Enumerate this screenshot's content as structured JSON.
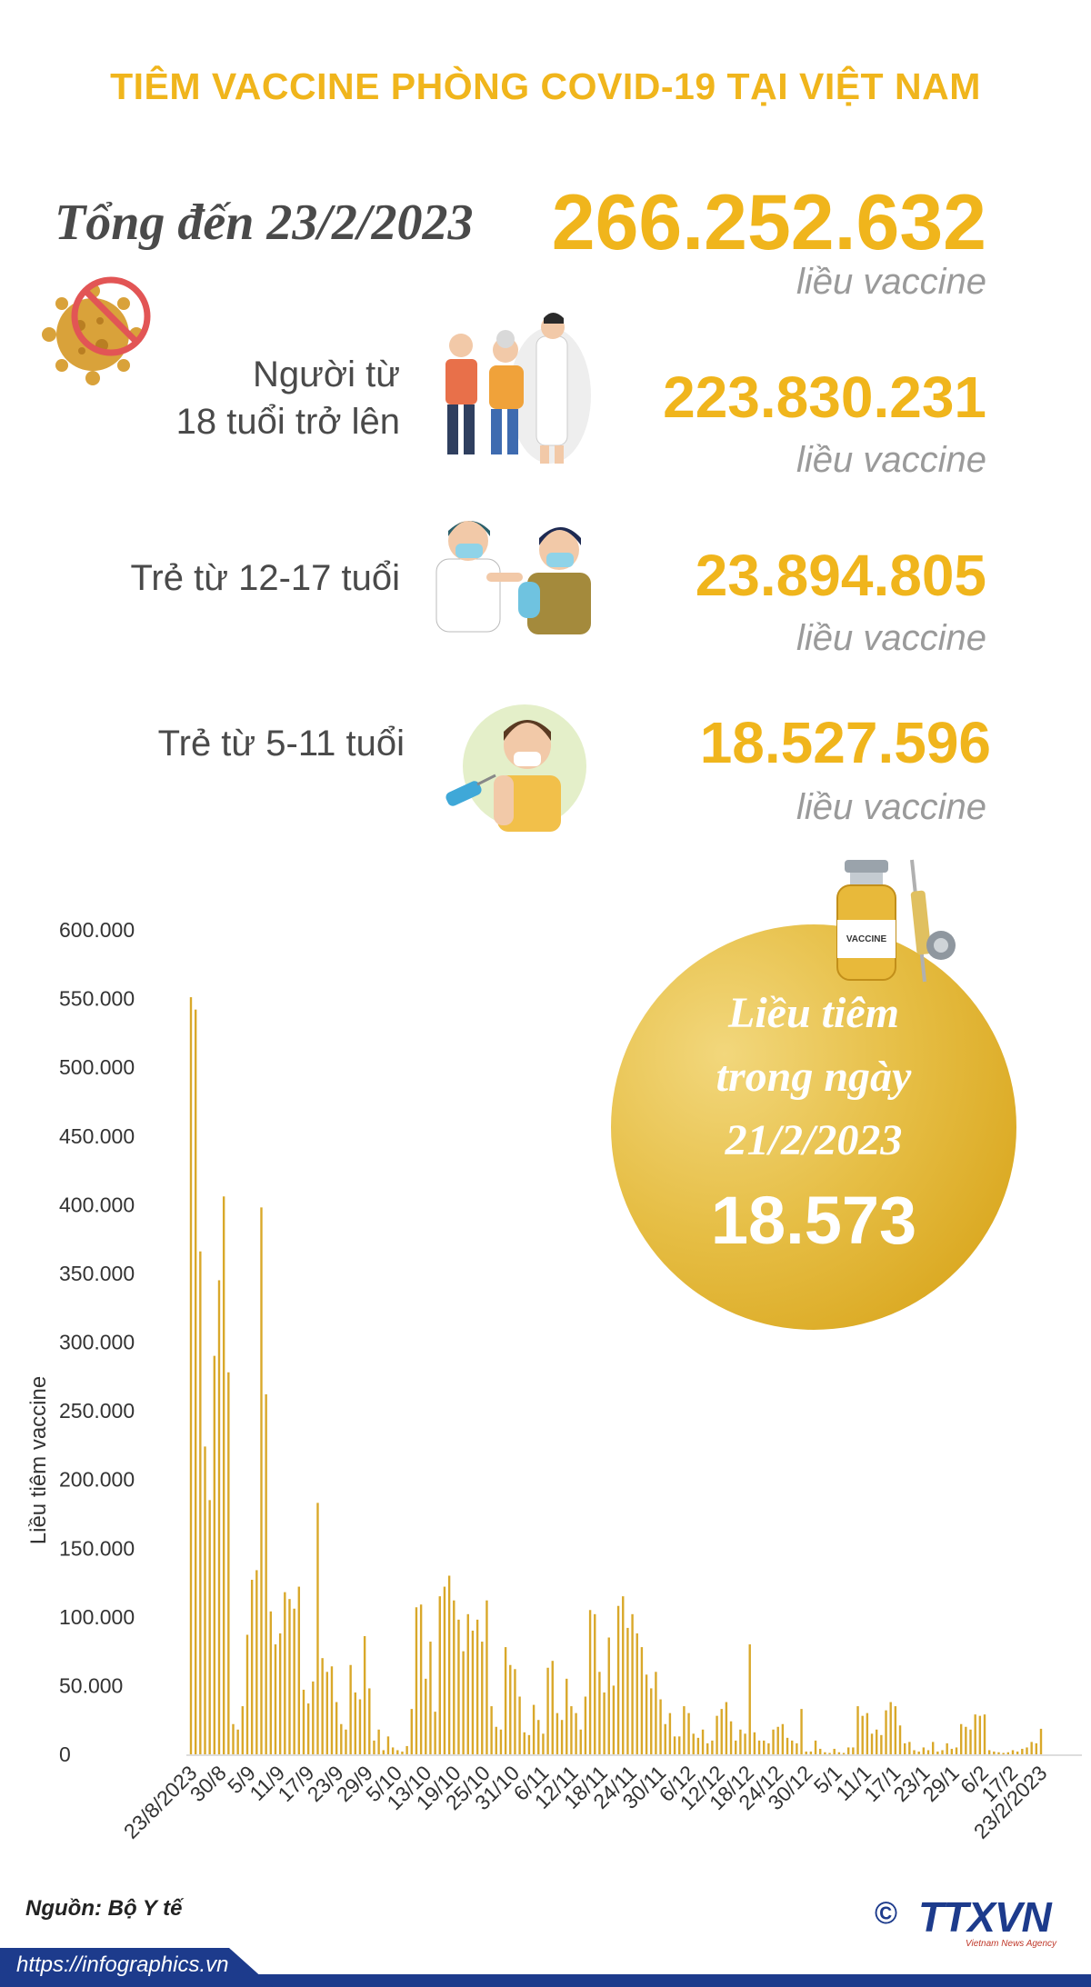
{
  "title": "TIÊM VACCINE PHÒNG COVID-19 TẠI VIỆT NAM",
  "summary": {
    "total_label": "Tổng đến 23/2/2023",
    "total_value": "266.252.632",
    "total_unit": "liều vaccine",
    "groups": [
      {
        "label_line1": "Người từ",
        "label_line2": "18 tuổi trở lên",
        "value": "223.830.231",
        "unit": "liều vaccine"
      },
      {
        "label_line1": "Trẻ từ 12-17 tuổi",
        "label_line2": "",
        "value": "23.894.805",
        "unit": "liều vaccine"
      },
      {
        "label_line1": "Trẻ từ 5-11 tuổi",
        "label_line2": "",
        "value": "18.527.596",
        "unit": "liều vaccine"
      }
    ]
  },
  "highlight": {
    "line1": "Liều tiêm",
    "line2": "trong ngày",
    "line3": "21/2/2023",
    "value": "18.573",
    "bottle_label": "VACCINE"
  },
  "footer": {
    "source": "Nguồn: Bộ Y tế",
    "url": "https://infographics.vn",
    "logo_text": "TTXVN",
    "logo_sub": "Vietnam News Agency",
    "copyright": "©"
  },
  "colors": {
    "accent": "#f0b51c",
    "bar": "#d9a82a",
    "dark_text": "#4a4a4a",
    "footer_blue": "#1d3b8c"
  },
  "chart_data": {
    "type": "bar",
    "xlabel": "",
    "ylabel": "Liều tiêm vaccine",
    "ylim": [
      0,
      600000
    ],
    "yticks": [
      0,
      50000,
      100000,
      150000,
      200000,
      250000,
      300000,
      350000,
      400000,
      450000,
      500000,
      550000,
      600000
    ],
    "ytick_labels": [
      "0",
      "50.000",
      "100.000",
      "150.000",
      "200.000",
      "250.000",
      "300.000",
      "350.000",
      "400.000",
      "450.000",
      "500.000",
      "550.000",
      "600.000"
    ],
    "xtick_labels": [
      "23/8/2023",
      "30/8",
      "5/9",
      "11/9",
      "17/9",
      "23/9",
      "29/9",
      "5/10",
      "13/10",
      "19/10",
      "25/10",
      "31/10",
      "6/11",
      "12/11",
      "18/11",
      "24/11",
      "30/11",
      "6/12",
      "12/12",
      "18/12",
      "24/12",
      "30/12",
      "5/1",
      "11/1",
      "17/1",
      "23/1",
      "29/1",
      "6/2",
      "17/2",
      "23/2/2023"
    ],
    "grid": false,
    "values": [
      551000,
      542000,
      366000,
      224000,
      185000,
      290000,
      345000,
      406000,
      278000,
      22000,
      18000,
      35000,
      87000,
      127000,
      134000,
      398000,
      262000,
      104000,
      80000,
      88000,
      118000,
      113000,
      106000,
      122000,
      47000,
      37000,
      53000,
      183000,
      70000,
      60000,
      64000,
      38000,
      22000,
      18000,
      65000,
      45000,
      40000,
      86000,
      48000,
      10000,
      18000,
      3000,
      13000,
      5000,
      3000,
      2000,
      6000,
      33000,
      107000,
      109000,
      55000,
      82000,
      31000,
      115000,
      122000,
      130000,
      112000,
      98000,
      75000,
      102000,
      90000,
      98000,
      82000,
      112000,
      35000,
      20000,
      18000,
      78000,
      65000,
      62000,
      42000,
      16000,
      14000,
      36000,
      25000,
      15000,
      63000,
      68000,
      30000,
      25000,
      55000,
      35000,
      30000,
      18000,
      42000,
      105000,
      102000,
      60000,
      45000,
      85000,
      50000,
      108000,
      115000,
      92000,
      102000,
      88000,
      78000,
      58000,
      48000,
      60000,
      40000,
      22000,
      30000,
      13000,
      13000,
      35000,
      30000,
      15000,
      12000,
      18000,
      8000,
      10000,
      28000,
      33000,
      38000,
      24000,
      10000,
      18000,
      15000,
      80000,
      16000,
      10000,
      10000,
      8000,
      18000,
      20000,
      22000,
      12000,
      10000,
      8000,
      33000,
      2000,
      2000,
      10000,
      4000,
      1500,
      1000,
      4000,
      1500,
      1000,
      5000,
      5000,
      35000,
      28000,
      30000,
      15000,
      18000,
      14000,
      32000,
      38000,
      35000,
      21000,
      8000,
      9000,
      3000,
      2000,
      5000,
      3000,
      9000,
      2000,
      3000,
      8000,
      4000,
      5000,
      22000,
      20000,
      18000,
      29000,
      28000,
      29000,
      3000,
      2000,
      1500,
      1000,
      1500,
      3000,
      2000,
      4000,
      5000,
      9000,
      8000,
      18573
    ]
  }
}
